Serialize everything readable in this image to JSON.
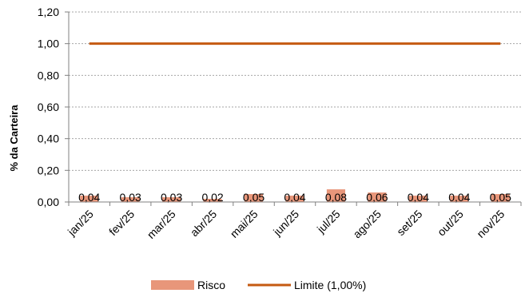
{
  "chart_data": {
    "type": "bar",
    "title": "",
    "xlabel": "",
    "ylabel": "% da Carteira",
    "ylim": [
      0,
      1.2
    ],
    "yticks": [
      "0,00",
      "0,20",
      "0,40",
      "0,60",
      "0,80",
      "1,00",
      "1,20"
    ],
    "ytick_values": [
      0,
      0.2,
      0.4,
      0.6,
      0.8,
      1.0,
      1.2
    ],
    "categories": [
      "jan/25",
      "fev/25",
      "mar/25",
      "abr/25",
      "mai/25",
      "jun/25",
      "jul/25",
      "ago/25",
      "set/25",
      "out/25",
      "nov/25"
    ],
    "grid": true,
    "legend_position": "bottom",
    "series": [
      {
        "name": "Risco",
        "kind": "bar",
        "color": "#E8967A",
        "values": [
          0.04,
          0.03,
          0.03,
          0.02,
          0.05,
          0.04,
          0.08,
          0.06,
          0.04,
          0.04,
          0.05
        ],
        "labels": [
          "0,04",
          "0,03",
          "0,03",
          "0,02",
          "0,05",
          "0,04",
          "0,08",
          "0,06",
          "0,04",
          "0,04",
          "0,05"
        ]
      },
      {
        "name": "Limite (1,00%)",
        "kind": "line",
        "color": "#C55A11",
        "values": [
          1,
          1,
          1,
          1,
          1,
          1,
          1,
          1,
          1,
          1,
          1
        ]
      }
    ]
  }
}
